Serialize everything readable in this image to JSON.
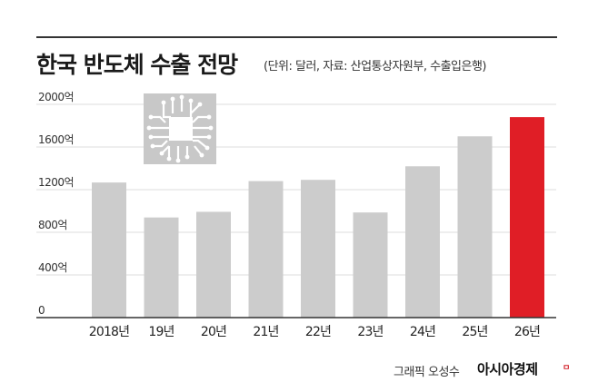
{
  "header": {
    "title": "한국 반도체 수출 전망",
    "subtitle": "(단위: 달러, 자료: 산업통상자원부, 수출입은행)"
  },
  "footer": {
    "credit": "그래픽 오성수",
    "brand": "아시아경제",
    "brand_mark": "ㅁ"
  },
  "icons": {
    "chip": "microchip-icon"
  },
  "colors": {
    "bar": "#cccccc",
    "highlight": "#e01e26",
    "axis": "#333333",
    "grid": "#dddddd"
  },
  "chart_data": {
    "type": "bar",
    "categories": [
      "2018년",
      "19년",
      "20년",
      "21년",
      "22년",
      "23년",
      "24년",
      "25년",
      "26년"
    ],
    "values": [
      1267,
      939,
      992,
      1280,
      1292,
      986,
      1419,
      1700,
      1880
    ],
    "highlight_index": 8,
    "y_ticks": [
      "0",
      "400억",
      "800억",
      "1200억",
      "1600억",
      "2000억"
    ],
    "y_tick_values": [
      0,
      400,
      800,
      1200,
      1600,
      2000
    ],
    "ylim": [
      0,
      2000
    ],
    "grid": true
  }
}
